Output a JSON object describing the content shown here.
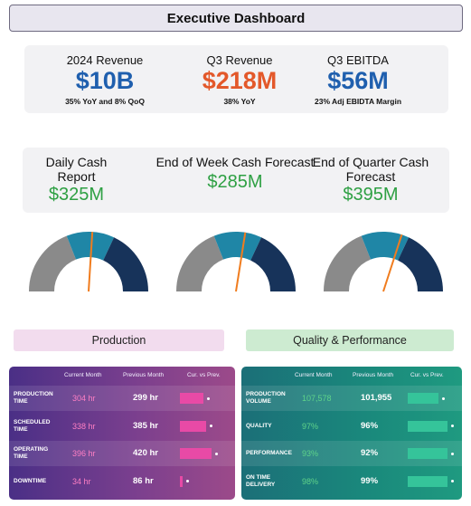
{
  "title": "Executive Dashboard",
  "kpis": [
    {
      "label": "2024 Revenue",
      "value": "$10B",
      "color": "#1f5fae",
      "sub": "35% YoY and 8% QoQ"
    },
    {
      "label": "Q3  Revenue",
      "value": "$218M",
      "color": "#e3582a",
      "sub": "38% YoY"
    },
    {
      "label": "Q3  EBITDA",
      "value": "$56M",
      "color": "#1f5fae",
      "sub": "23% Adj EBIDTA Margin"
    }
  ],
  "cash": [
    {
      "label": "Daily Cash Report",
      "value": "$325M"
    },
    {
      "label": "End of Week Cash Forecast",
      "value": "$285M"
    },
    {
      "label": "End of Quarter Cash Forecast",
      "value": "$395M"
    }
  ],
  "gauges": [
    {
      "needle_fraction": 0.52
    },
    {
      "needle_fraction": 0.55
    },
    {
      "needle_fraction": 0.6
    }
  ],
  "gauge_colors": {
    "low": "#8a8a8a",
    "mid": "#1f86a6",
    "high": "#17335a",
    "needle": "#f07c1e"
  },
  "production": {
    "title": "Production",
    "headers": [
      "Current Month",
      "Previous Month",
      "Cur. vs Prev."
    ],
    "rows": [
      {
        "label_line1": "PRODUCTION",
        "label_line2": "TIME",
        "current": "304 hr",
        "previous": "299 hr",
        "ratio": 0.55
      },
      {
        "label_line1": "SCHEDULED",
        "label_line2": "TIME",
        "current": "338 hr",
        "previous": "385 hr",
        "ratio": 0.6
      },
      {
        "label_line1": "OPERATING",
        "label_line2": "TIME",
        "current": "396 hr",
        "previous": "420 hr",
        "ratio": 0.72
      },
      {
        "label_line1": "DOWNTIME",
        "label_line2": "",
        "current": "34 hr",
        "previous": "86 hr",
        "ratio": 0.06
      }
    ]
  },
  "quality": {
    "title": "Quality & Performance",
    "headers": [
      "Current Month",
      "Previous Month",
      "Cur. vs Prev."
    ],
    "rows": [
      {
        "label_line1": "PRODUCTION",
        "label_line2": "VOLUME",
        "current": "107,578",
        "previous": "101,955",
        "ratio": 0.68
      },
      {
        "label_line1": "QUALITY",
        "label_line2": "",
        "current": "97%",
        "previous": "96%",
        "ratio": 0.88
      },
      {
        "label_line1": "PERFORMANCE",
        "label_line2": "",
        "current": "93%",
        "previous": "92%",
        "ratio": 0.88
      },
      {
        "label_line1": "ON TIME",
        "label_line2": "DELIVERY",
        "current": "98%",
        "previous": "99%",
        "ratio": 0.88
      }
    ]
  }
}
